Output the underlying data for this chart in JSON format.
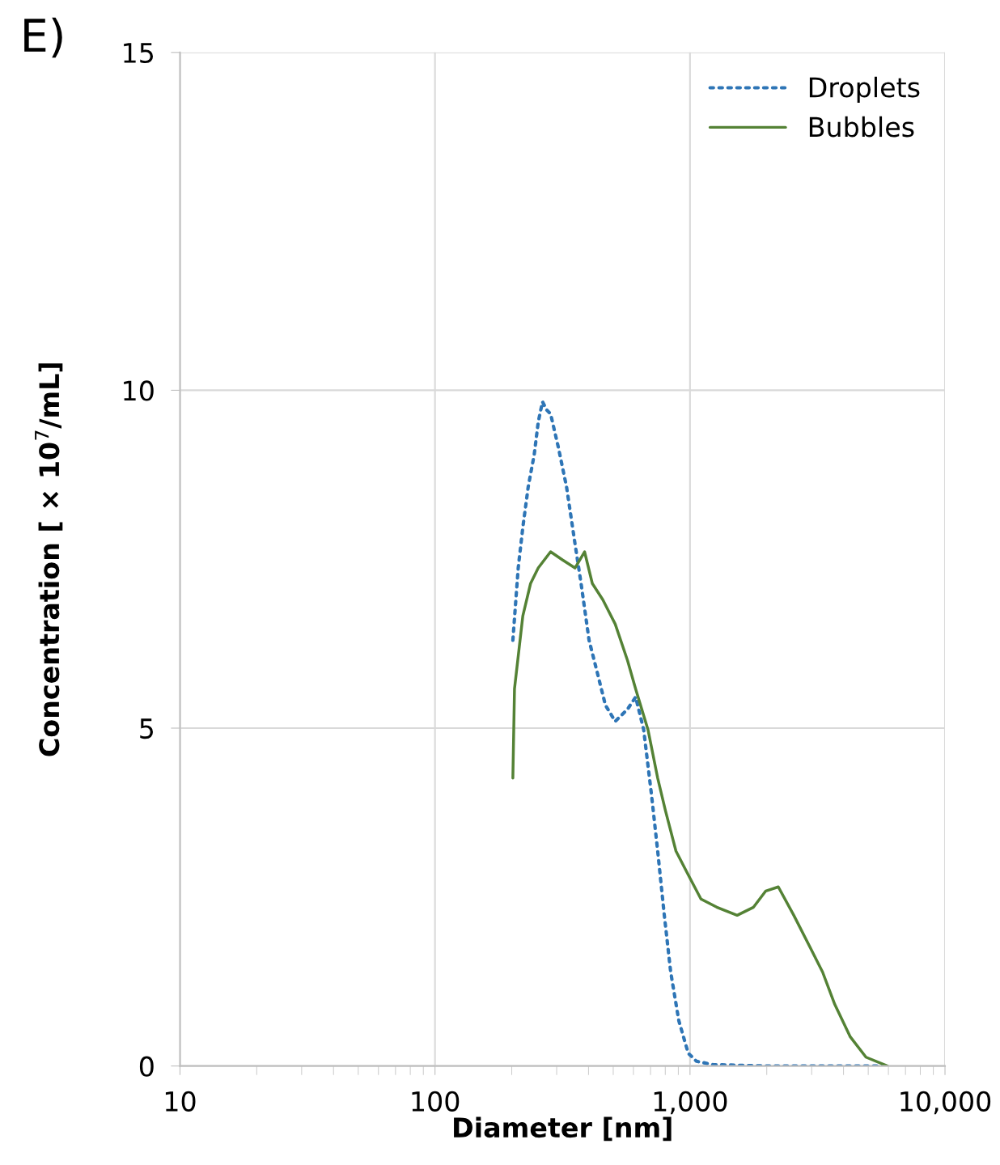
{
  "chart_data": {
    "type": "line",
    "title": "E)",
    "xlabel": "Diameter [nm]",
    "ylabel": "Concentration [ × 10$^{7}$/mL]",
    "log": "x",
    "xlim": [
      10,
      10000
    ],
    "xticks": [
      10,
      100,
      {
        "value": 1000,
        "label": "1,000"
      },
      {
        "value": 10000,
        "label": "10,000"
      }
    ],
    "ylim": [
      0,
      15
    ],
    "yticks": [
      0,
      5,
      10,
      15
    ],
    "grid": true,
    "legend": "top right",
    "series": [
      {
        "name": "Droplets",
        "color": "#2e75b6",
        "line_style": "dotted",
        "x": [
          202,
          212,
          221,
          232,
          245,
          254,
          264,
          274,
          284,
          304,
          328,
          354,
          374,
          402,
          433,
          466,
          509,
          569,
          612,
          658,
          706,
          747,
          793,
          840,
          904,
          984,
          1060,
          1230,
          2050,
          4200,
          5950
        ],
        "values": [
          6.3,
          7.37,
          7.97,
          8.57,
          9.05,
          9.53,
          9.83,
          9.71,
          9.65,
          9.17,
          8.57,
          7.73,
          7.14,
          6.3,
          5.82,
          5.34,
          5.1,
          5.28,
          5.46,
          4.98,
          4.02,
          3.18,
          2.23,
          1.39,
          0.67,
          0.19,
          0.07,
          0.02,
          0,
          0,
          0
        ]
      },
      {
        "name": "Bubbles",
        "color": "#548235",
        "line_style": "solid",
        "x": [
          202,
          205,
          221,
          237,
          254,
          284,
          316,
          354,
          386,
          414,
          455,
          509,
          569,
          612,
          684,
          747,
          801,
          881,
          984,
          1104,
          1273,
          1531,
          1775,
          1982,
          2220,
          2553,
          2964,
          3311,
          3697,
          4253,
          4900,
          5950
        ],
        "values": [
          4.26,
          5.58,
          6.66,
          7.14,
          7.37,
          7.61,
          7.49,
          7.37,
          7.61,
          7.14,
          6.9,
          6.54,
          6.0,
          5.58,
          4.98,
          4.26,
          3.78,
          3.18,
          2.83,
          2.47,
          2.35,
          2.23,
          2.35,
          2.59,
          2.65,
          2.23,
          1.75,
          1.39,
          0.91,
          0.43,
          0.13,
          0
        ]
      }
    ]
  }
}
